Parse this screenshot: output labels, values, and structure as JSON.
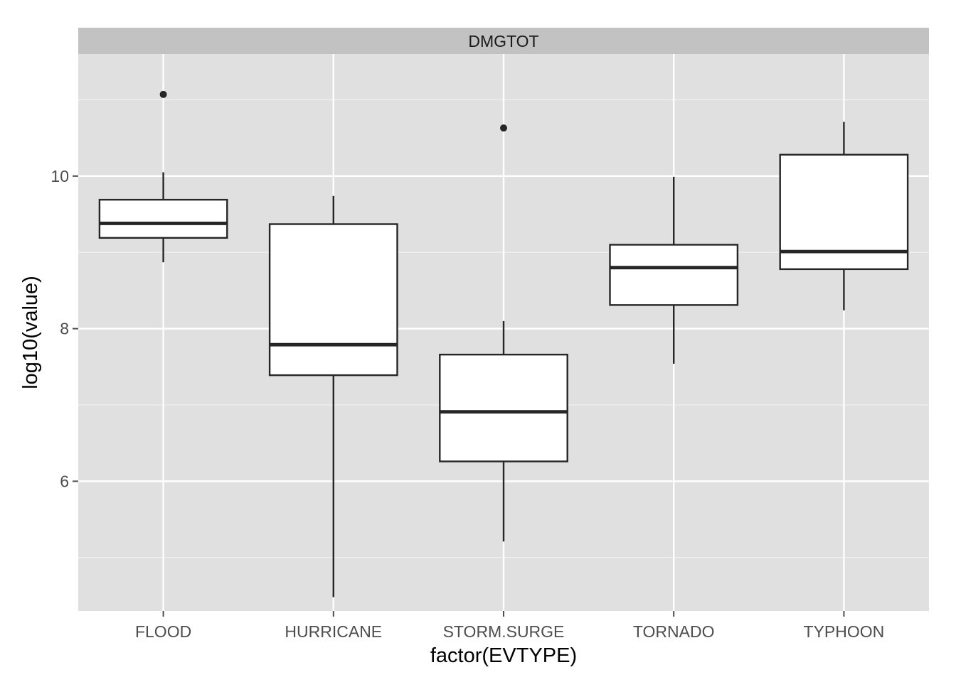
{
  "chart_data": {
    "type": "boxplot",
    "facet_label": "DMGTOT",
    "xlabel": "factor(EVTYPE)",
    "ylabel": "log10(value)",
    "categories": [
      "FLOOD",
      "HURRICANE",
      "STORM.SURGE",
      "TORNADO",
      "TYPHOON"
    ],
    "ylim": [
      4.3,
      11.6
    ],
    "yticks": [
      6,
      8,
      10
    ],
    "yticklabels": [
      "6",
      "8",
      "10"
    ],
    "grid": true,
    "boxes": [
      {
        "category": "FLOOD",
        "whisker_low": 8.87,
        "q1": 9.19,
        "median": 9.38,
        "q3": 9.69,
        "whisker_high": 10.05,
        "outliers": [
          11.07
        ]
      },
      {
        "category": "HURRICANE",
        "whisker_low": 4.48,
        "q1": 7.39,
        "median": 7.79,
        "q3": 9.37,
        "whisker_high": 9.74,
        "outliers": []
      },
      {
        "category": "STORM.SURGE",
        "whisker_low": 5.21,
        "q1": 6.26,
        "median": 6.91,
        "q3": 7.66,
        "whisker_high": 8.1,
        "outliers": [
          10.63
        ]
      },
      {
        "category": "TORNADO",
        "whisker_low": 7.54,
        "q1": 8.31,
        "median": 8.8,
        "q3": 9.1,
        "whisker_high": 9.99,
        "outliers": []
      },
      {
        "category": "TYPHOON",
        "whisker_low": 8.24,
        "q1": 8.78,
        "median": 9.01,
        "q3": 10.28,
        "whisker_high": 10.71,
        "outliers": []
      }
    ],
    "colors": {
      "panel_background": "#e0e0e0",
      "strip_background": "#c2c2c2",
      "grid_major": "#ffffff",
      "grid_minor": "#f0f0f0",
      "box_fill": "#ffffff",
      "box_stroke": "#262626"
    }
  }
}
